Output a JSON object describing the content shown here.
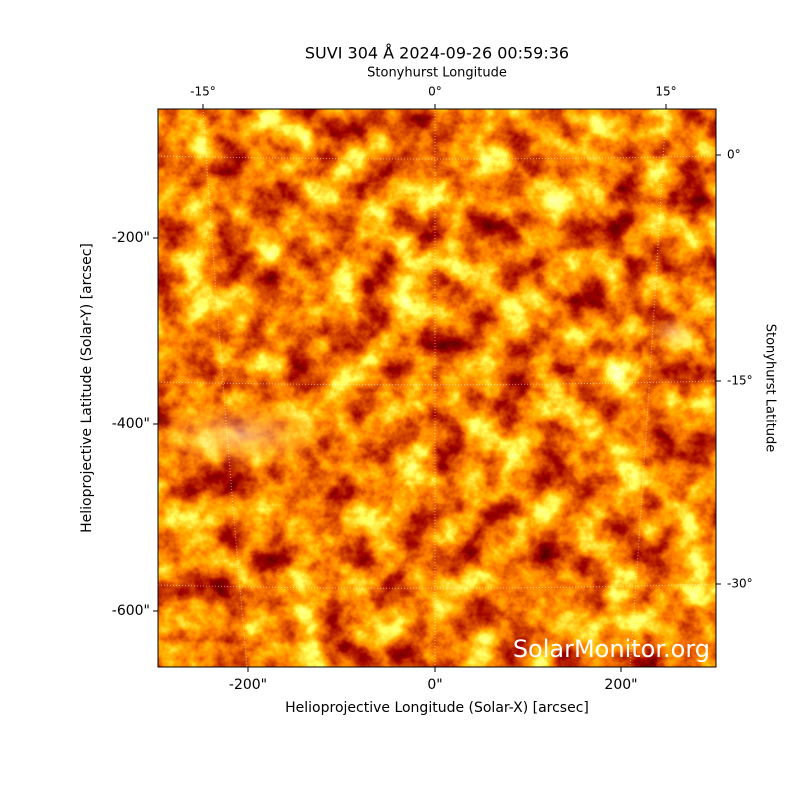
{
  "title": "SUVI 304 Å 2024-09-26 00:59:36",
  "top_axis": {
    "label": "Stonyhurst Longitude",
    "ticks": [
      "-15°",
      "0°",
      "15°"
    ]
  },
  "right_axis": {
    "label": "Stonyhurst Latitude",
    "ticks": [
      "0°",
      "-15°",
      "-30°"
    ]
  },
  "x_axis": {
    "label": "Helioprojective Longitude (Solar-X) [arcsec]",
    "ticks": [
      "-200\"",
      "0\"",
      "200\""
    ]
  },
  "y_axis": {
    "label": "Helioprojective Latitude (Solar-Y) [arcsec]",
    "ticks": [
      "-200\"",
      "-400\"",
      "-600\""
    ]
  },
  "watermark": "SolarMonitor.org"
}
